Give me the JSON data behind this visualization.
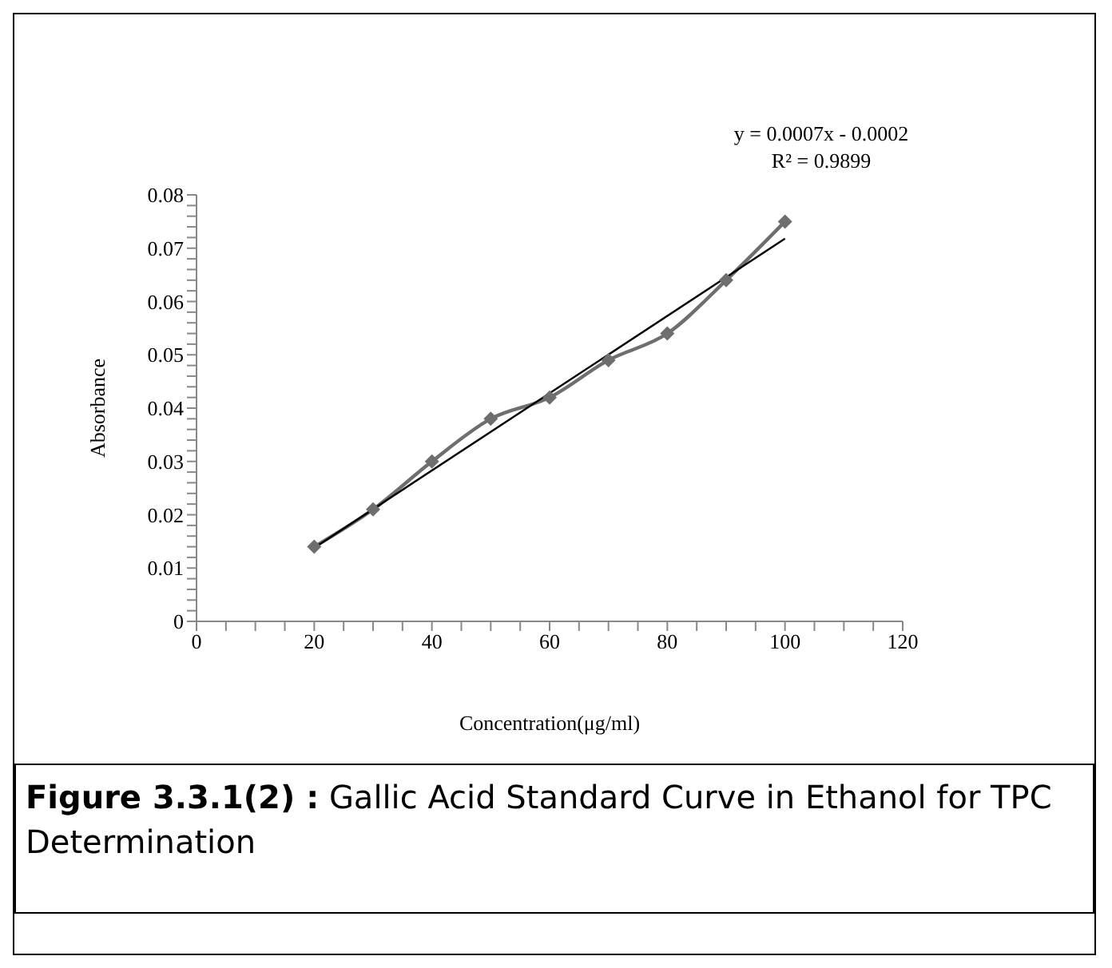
{
  "chart_data": {
    "type": "line",
    "xlabel": "Concentration(μg/ml)",
    "ylabel": "Absorbance",
    "annotations": [
      "y = 0.0007x - 0.0002",
      "R² = 0.9899",
      "Figure 3.3.1(2) :",
      "Gallic Acid Standard Curve in Ethanol for TPC Determination"
    ],
    "xlim": [
      0,
      120
    ],
    "xticks": [
      0,
      {
        "value": 5,
        "label": null
      },
      {
        "value": 10,
        "label": null
      },
      {
        "value": 15,
        "label": null
      },
      20,
      {
        "value": 25,
        "label": null
      },
      {
        "value": 30,
        "label": null
      },
      {
        "value": 35,
        "label": null
      },
      40,
      {
        "value": 45,
        "label": null
      },
      {
        "value": 50,
        "label": null
      },
      {
        "value": 55,
        "label": null
      },
      60,
      {
        "value": 65,
        "label": null
      },
      {
        "value": 70,
        "label": null
      },
      {
        "value": 75,
        "label": null
      },
      80,
      {
        "value": 85,
        "label": null
      },
      {
        "value": 90,
        "label": null
      },
      {
        "value": 95,
        "label": null
      },
      100,
      {
        "value": 105,
        "label": null
      },
      {
        "value": 110,
        "label": null
      },
      {
        "value": 115,
        "label": null
      },
      120
    ],
    "ylim": [
      0,
      0.08
    ],
    "yticks": [
      0,
      {
        "value": 0.002,
        "label": null
      },
      {
        "value": 0.004,
        "label": null
      },
      {
        "value": 0.006,
        "label": null
      },
      {
        "value": 0.008,
        "label": null
      },
      0.01,
      {
        "value": 0.012,
        "label": null
      },
      {
        "value": 0.014,
        "label": null
      },
      {
        "value": 0.016,
        "label": null
      },
      {
        "value": 0.018,
        "label": null
      },
      0.02,
      {
        "value": 0.022,
        "label": null
      },
      {
        "value": 0.024,
        "label": null
      },
      {
        "value": 0.026,
        "label": null
      },
      {
        "value": 0.028,
        "label": null
      },
      0.03,
      {
        "value": 0.032,
        "label": null
      },
      {
        "value": 0.034,
        "label": null
      },
      {
        "value": 0.036,
        "label": null
      },
      {
        "value": 0.038,
        "label": null
      },
      0.04,
      {
        "value": 0.042,
        "label": null
      },
      {
        "value": 0.044,
        "label": null
      },
      {
        "value": 0.046,
        "label": null
      },
      {
        "value": 0.048,
        "label": null
      },
      0.05,
      {
        "value": 0.052,
        "label": null
      },
      {
        "value": 0.054,
        "label": null
      },
      {
        "value": 0.056,
        "label": null
      },
      {
        "value": 0.058,
        "label": null
      },
      0.06,
      {
        "value": 0.062,
        "label": null
      },
      {
        "value": 0.064,
        "label": null
      },
      {
        "value": 0.066,
        "label": null
      },
      {
        "value": 0.068,
        "label": null
      },
      0.07,
      {
        "value": 0.072,
        "label": null
      },
      {
        "value": 0.074,
        "label": null
      },
      {
        "value": 0.076,
        "label": null
      },
      {
        "value": 0.078,
        "label": null
      },
      0.08
    ],
    "series": [
      {
        "color": "#6e6e6e",
        "marker": "diamond",
        "x": [
          20,
          30,
          40,
          50,
          60,
          70,
          80,
          90,
          100
        ],
        "values": [
          0.014,
          0.021,
          0.03,
          0.038,
          0.042,
          0.049,
          0.054,
          0.064,
          0.075
        ]
      },
      {
        "color": "#000000",
        "marker": "none",
        "x": [
          20,
          100
        ],
        "values": [
          0.0138,
          0.0718
        ]
      }
    ],
    "line_style": "solid"
  }
}
